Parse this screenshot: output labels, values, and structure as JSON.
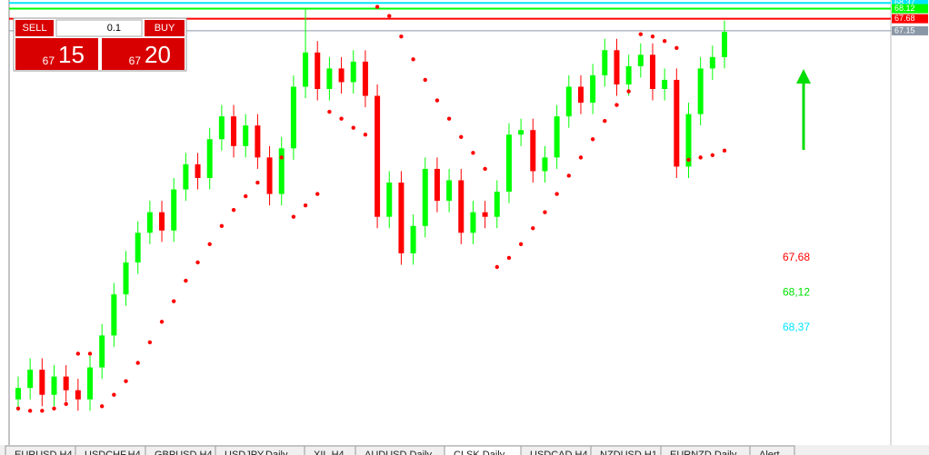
{
  "toolbar": {
    "sell": "SELL",
    "buy": "BUY",
    "lot": "0.1",
    "sell_small": "67",
    "sell_big": "15",
    "buy_small": "67",
    "buy_big": "20"
  },
  "chart_data": {
    "type": "candlestick",
    "ylim": [
      49.0,
      68.5
    ],
    "open": [
      51.0,
      51.5,
      52.3,
      51.2,
      52.0,
      51.4,
      51.0,
      52.4,
      53.8,
      55.6,
      57.0,
      58.3,
      59.2,
      58.4,
      60.2,
      61.3,
      60.7,
      62.4,
      63.4,
      62.1,
      63.0,
      61.6,
      60.0,
      62.0,
      64.7,
      66.2,
      64.6,
      65.5,
      64.9,
      65.8,
      64.3,
      59.0,
      60.5,
      57.4,
      58.6,
      61.1,
      59.7,
      60.6,
      58.3,
      59.2,
      59.0,
      60.1,
      62.6,
      62.8,
      61.0,
      61.6,
      63.4,
      64.7,
      64.0,
      65.2,
      66.3,
      64.8,
      65.6,
      66.1,
      64.6,
      65.0,
      61.2,
      63.5,
      65.5,
      66.0
    ],
    "high": [
      52.0,
      52.8,
      52.8,
      52.5,
      52.5,
      51.9,
      52.9,
      54.3,
      56.1,
      57.5,
      58.8,
      59.7,
      59.7,
      60.7,
      61.8,
      61.8,
      62.9,
      63.9,
      63.9,
      63.5,
      63.5,
      62.1,
      62.5,
      65.2,
      68.1,
      66.7,
      66.0,
      66.0,
      66.3,
      66.3,
      64.8,
      61.0,
      61.0,
      59.1,
      61.6,
      61.6,
      61.1,
      61.1,
      59.7,
      59.7,
      60.6,
      63.1,
      63.3,
      63.3,
      62.1,
      63.9,
      65.2,
      65.2,
      65.7,
      66.8,
      66.8,
      66.1,
      66.6,
      66.6,
      65.5,
      65.5,
      64.0,
      66.0,
      66.5,
      67.6
    ],
    "low": [
      50.5,
      51.0,
      50.7,
      50.7,
      50.9,
      50.5,
      50.5,
      51.9,
      53.3,
      55.1,
      56.5,
      57.8,
      57.9,
      57.9,
      59.7,
      60.2,
      60.2,
      61.9,
      61.6,
      61.6,
      61.1,
      59.5,
      59.5,
      61.5,
      64.2,
      64.1,
      64.1,
      64.4,
      64.4,
      63.8,
      58.5,
      58.5,
      56.9,
      56.9,
      58.1,
      59.2,
      59.2,
      57.8,
      57.8,
      58.5,
      58.5,
      59.6,
      62.1,
      60.5,
      60.5,
      61.1,
      62.9,
      63.5,
      63.5,
      64.7,
      64.3,
      64.3,
      65.1,
      64.1,
      64.1,
      60.7,
      60.7,
      63.0,
      65.0,
      65.5
    ],
    "close": [
      51.5,
      52.3,
      51.2,
      52.0,
      51.4,
      51.0,
      52.4,
      53.8,
      55.6,
      57.0,
      58.3,
      59.2,
      58.4,
      60.2,
      61.3,
      60.7,
      62.4,
      63.4,
      62.1,
      63.0,
      61.6,
      60.0,
      62.0,
      64.7,
      66.2,
      64.6,
      65.5,
      64.9,
      65.8,
      64.3,
      59.0,
      60.5,
      57.4,
      58.6,
      61.1,
      59.7,
      60.6,
      58.3,
      59.2,
      59.0,
      60.1,
      62.6,
      62.8,
      61.0,
      61.6,
      63.4,
      64.7,
      64.0,
      65.2,
      66.3,
      64.8,
      65.6,
      66.1,
      64.6,
      65.0,
      61.2,
      63.5,
      65.5,
      66.0,
      67.1
    ],
    "sar": [
      50.6,
      50.5,
      50.5,
      50.6,
      50.8,
      53.0,
      53.0,
      50.7,
      51.2,
      51.8,
      52.6,
      53.5,
      54.4,
      55.3,
      56.2,
      57.0,
      57.8,
      58.6,
      59.3,
      59.9,
      60.5,
      61.1,
      61.6,
      59.0,
      59.5,
      60.0,
      63.6,
      63.3,
      62.9,
      62.6,
      68.2,
      67.8,
      66.9,
      65.9,
      65.0,
      64.1,
      63.3,
      62.5,
      61.8,
      61.1,
      56.8,
      57.2,
      57.8,
      58.5,
      59.2,
      60.0,
      60.8,
      61.6,
      62.4,
      63.2,
      63.9,
      64.5,
      67.0,
      66.9,
      66.7,
      66.4,
      61.5,
      61.6,
      61.7,
      61.9
    ],
    "up_color": "#00ff00",
    "down_color": "#ff0000",
    "sar_color": "#ff0000",
    "levels": [
      {
        "value": 68.37,
        "color": "#00e5ff"
      },
      {
        "value": 68.12,
        "color": "#00ff00"
      },
      {
        "value": 67.68,
        "color": "#ff0000"
      },
      {
        "value": 67.15,
        "color": "#8a97a6"
      }
    ],
    "yticks": [
      68.37,
      68.12,
      67.68,
      67.15
    ],
    "annotations": [
      {
        "text": "67,68",
        "color": "#ff0000"
      },
      {
        "text": "68,12",
        "color": "#00e000"
      },
      {
        "text": "68,37",
        "color": "#00e5ff"
      }
    ]
  },
  "tabs": [
    "EURUSD,H4",
    "USDCHF,H4",
    "GBPUSD,H4",
    "USDJPY,Daily",
    "XIL,H4",
    "AUDUSD,Daily",
    "CLSK,Daily",
    "USDCAD,H4",
    "NZDUSD,H1",
    "EURNZD,Daily",
    "Alert"
  ]
}
